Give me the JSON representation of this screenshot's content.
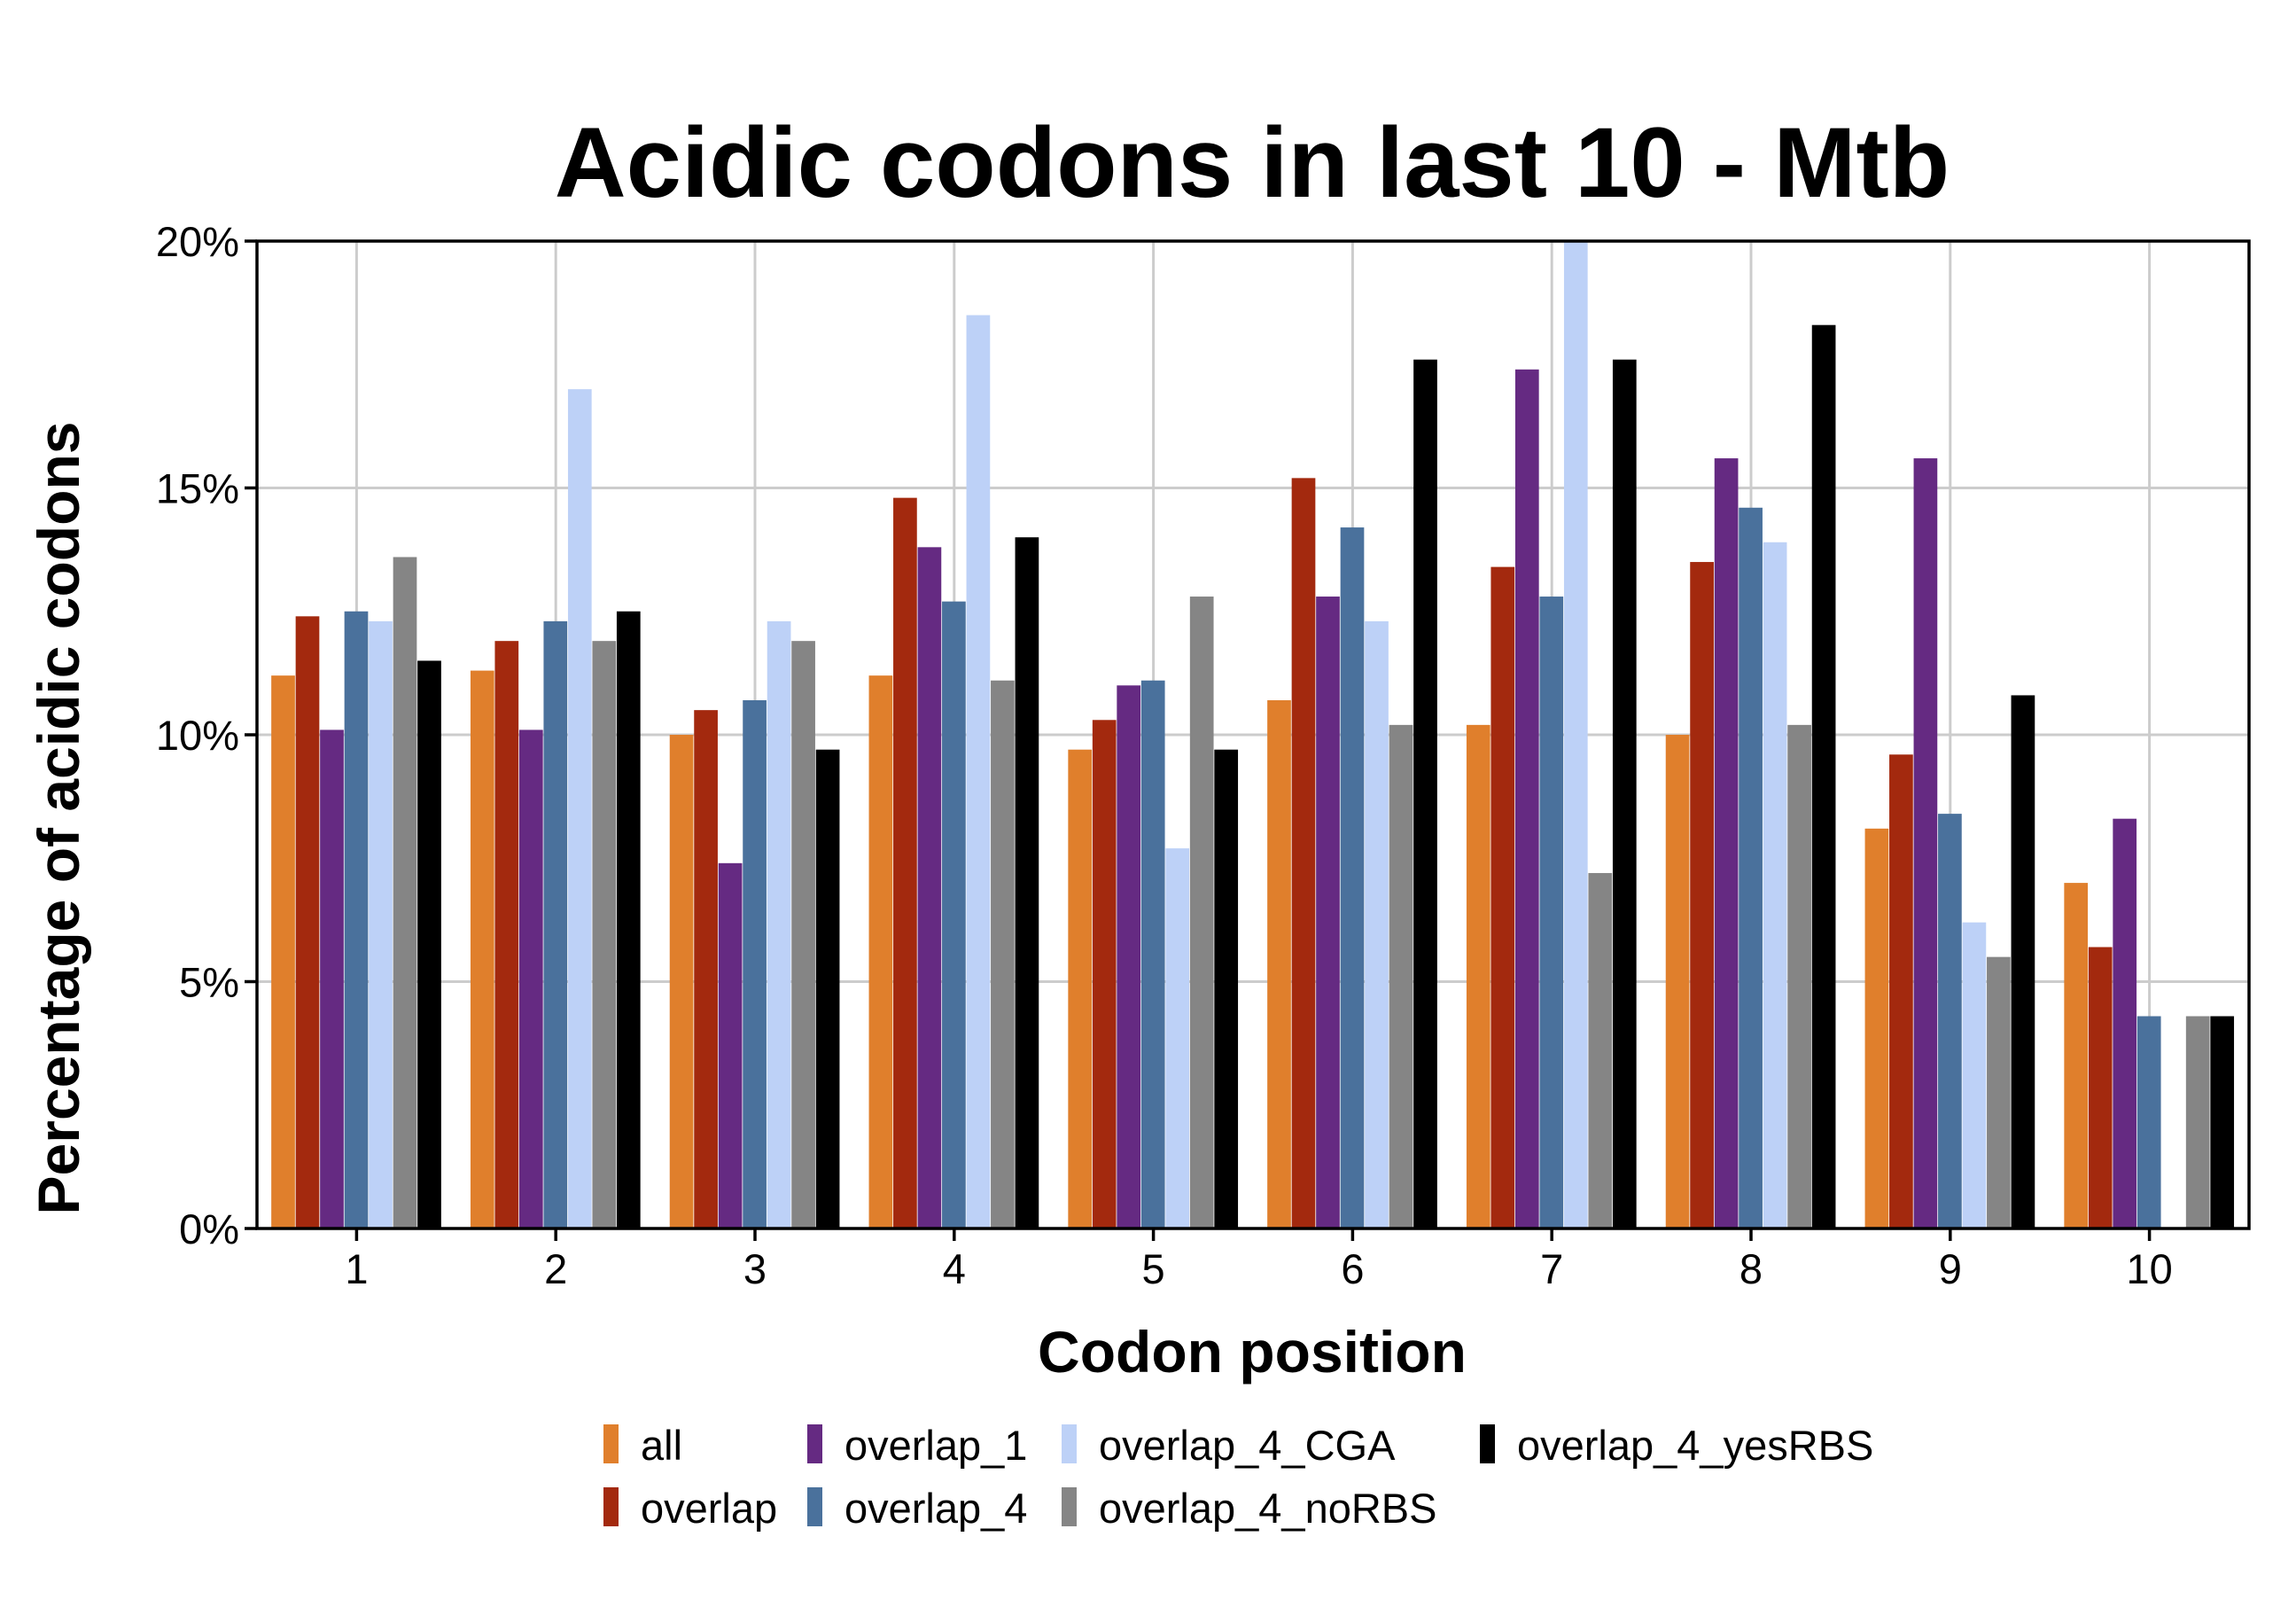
{
  "chart_data": {
    "type": "bar",
    "title": "Acidic codons in last 10 - Mtb",
    "xlabel": "Codon position",
    "ylabel": "Percentage of acidic codons",
    "categories": [
      "1",
      "2",
      "3",
      "4",
      "5",
      "6",
      "7",
      "8",
      "9",
      "10"
    ],
    "ylim": [
      0,
      20
    ],
    "yticks": [
      0,
      5,
      10,
      15,
      20
    ],
    "ytick_labels": [
      "0%",
      "5%",
      "10%",
      "15%",
      "20%"
    ],
    "grid": true,
    "legend_position": "bottom",
    "series": [
      {
        "name": "all",
        "color": "#e07f2c",
        "values": [
          11.2,
          11.3,
          10.0,
          11.2,
          9.7,
          10.7,
          10.2,
          10.0,
          8.1,
          7.0
        ]
      },
      {
        "name": "overlap",
        "color": "#a3290e",
        "values": [
          12.4,
          11.9,
          10.5,
          14.8,
          10.3,
          15.2,
          13.4,
          13.5,
          9.6,
          5.7
        ]
      },
      {
        "name": "overlap_1",
        "color": "#652a82",
        "values": [
          10.1,
          10.1,
          7.4,
          13.8,
          11.0,
          12.8,
          17.4,
          15.6,
          15.6,
          8.3
        ]
      },
      {
        "name": "overlap_4",
        "color": "#4a719c",
        "values": [
          12.5,
          12.3,
          10.7,
          12.7,
          11.1,
          14.2,
          12.8,
          14.6,
          8.4,
          4.3
        ]
      },
      {
        "name": "overlap_4_CGA",
        "color": "#bdd1f7",
        "values": [
          12.3,
          17.0,
          12.3,
          18.5,
          7.7,
          12.3,
          20.0,
          13.9,
          6.2,
          0.0
        ]
      },
      {
        "name": "overlap_4_noRBS",
        "color": "#858585",
        "values": [
          13.6,
          11.9,
          11.9,
          11.1,
          12.8,
          10.2,
          7.2,
          10.2,
          5.5,
          4.3
        ]
      },
      {
        "name": "overlap_4_yesRBS",
        "color": "#000000",
        "values": [
          11.5,
          12.5,
          9.7,
          14.0,
          9.7,
          17.6,
          17.6,
          18.3,
          10.8,
          4.3
        ]
      }
    ]
  }
}
